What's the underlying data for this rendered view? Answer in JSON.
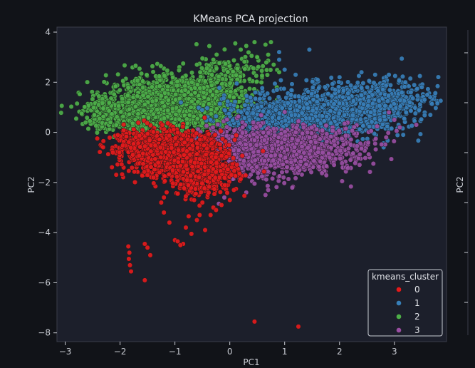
{
  "chart_data": {
    "type": "scatter",
    "title": "KMeans PCA projection",
    "xlabel": "PC1",
    "ylabel": "PC2",
    "right_ylabel": "PC2",
    "xlim": [
      -3.15,
      3.95
    ],
    "ylim": [
      -8.35,
      4.2
    ],
    "xticks": [
      "−3",
      "−2",
      "−1",
      "0",
      "1",
      "2",
      "3"
    ],
    "xtick_values": [
      -3,
      -2,
      -1,
      0,
      1,
      2,
      3
    ],
    "yticks": [
      "4",
      "2",
      "0",
      "−2",
      "−4",
      "−6",
      "−8"
    ],
    "ytick_values": [
      4,
      2,
      0,
      -2,
      -4,
      -6,
      -8
    ],
    "grid": false,
    "legend": {
      "title": "kmeans_cluster",
      "placement": "lower-right",
      "entries": [
        "0",
        "1",
        "2",
        "3"
      ]
    },
    "colors": {
      "background": "#111318",
      "plot_bg": "#1c1f2b",
      "text": "#d7d9de",
      "0": "#e41a1c",
      "1": "#377eb8",
      "2": "#4daf4a",
      "3": "#984ea3"
    },
    "series": [
      {
        "name": "0",
        "clusters": [
          {
            "cx": -1.0,
            "cy": -0.9,
            "sx": 0.45,
            "sy": 0.45,
            "n": 1100
          },
          {
            "cx": -0.45,
            "cy": -1.6,
            "sx": 0.3,
            "sy": 0.45,
            "n": 420
          },
          {
            "cx": -1.6,
            "cy": -0.4,
            "sx": 0.3,
            "sy": 0.3,
            "n": 220
          }
        ],
        "points": [
          [
            -1.85,
            -4.55
          ],
          [
            -1.83,
            -4.8
          ],
          [
            -1.84,
            -5.05
          ],
          [
            -1.82,
            -5.3
          ],
          [
            -1.8,
            -5.55
          ],
          [
            -1.55,
            -4.45
          ],
          [
            -1.5,
            -4.6
          ],
          [
            -1.45,
            -4.9
          ],
          [
            -1.55,
            -5.9
          ],
          [
            -1.0,
            -4.3
          ],
          [
            -0.95,
            -4.35
          ],
          [
            -0.85,
            -4.45
          ],
          [
            -0.9,
            -4.5
          ],
          [
            -1.2,
            -3.2
          ],
          [
            -1.1,
            -3.6
          ],
          [
            -0.8,
            -3.8
          ],
          [
            -0.7,
            -4.05
          ],
          [
            -0.45,
            -3.9
          ],
          [
            -0.6,
            -3.5
          ],
          [
            -0.75,
            -3.35
          ],
          [
            -0.35,
            -3.3
          ],
          [
            -0.3,
            -3.0
          ],
          [
            -0.25,
            -3.1
          ],
          [
            -0.95,
            -2.45
          ],
          [
            -0.8,
            -2.55
          ],
          [
            -0.65,
            -2.7
          ],
          [
            -1.2,
            -2.6
          ],
          [
            -1.25,
            -2.8
          ],
          [
            -0.5,
            -2.8
          ],
          [
            0.0,
            -2.7
          ],
          [
            0.45,
            -7.55
          ],
          [
            1.25,
            -7.75
          ],
          [
            -0.55,
            -3.3
          ],
          [
            -0.15,
            -2.9
          ]
        ]
      },
      {
        "name": "1",
        "clusters": [
          {
            "cx": 1.7,
            "cy": 0.8,
            "sx": 0.75,
            "sy": 0.5,
            "n": 1050
          },
          {
            "cx": 2.8,
            "cy": 1.3,
            "sx": 0.5,
            "sy": 0.45,
            "n": 280
          },
          {
            "cx": 0.8,
            "cy": 0.35,
            "sx": 0.5,
            "sy": 0.4,
            "n": 350
          }
        ],
        "points": [
          [
            1.45,
            3.3
          ],
          [
            0.9,
            3.2
          ],
          [
            2.65,
            2.3
          ],
          [
            3.2,
            2.0
          ],
          [
            3.5,
            1.8
          ],
          [
            3.55,
            1.3
          ],
          [
            3.6,
            1.5
          ],
          [
            3.3,
            1.6
          ],
          [
            1.2,
            2.3
          ],
          [
            1.0,
            2.5
          ],
          [
            2.4,
            2.4
          ],
          [
            2.0,
            2.2
          ],
          [
            1.6,
            2.1
          ],
          [
            0.9,
            2.9
          ],
          [
            2.9,
            2.3
          ]
        ]
      },
      {
        "name": "2",
        "clusters": [
          {
            "cx": -1.1,
            "cy": 1.1,
            "sx": 0.55,
            "sy": 0.55,
            "n": 1400
          },
          {
            "cx": -2.0,
            "cy": 0.7,
            "sx": 0.35,
            "sy": 0.3,
            "n": 320
          },
          {
            "cx": -0.3,
            "cy": 1.2,
            "sx": 0.35,
            "sy": 0.5,
            "n": 330
          },
          {
            "cx": 0.1,
            "cy": 2.4,
            "sx": 0.3,
            "sy": 0.35,
            "n": 130
          }
        ],
        "points": [
          [
            -2.8,
            0.55
          ],
          [
            -2.7,
            0.75
          ],
          [
            -2.55,
            0.45
          ],
          [
            0.3,
            3.45
          ],
          [
            0.65,
            3.5
          ],
          [
            0.75,
            3.6
          ],
          [
            0.5,
            3.0
          ],
          [
            0.8,
            2.7
          ],
          [
            0.9,
            2.4
          ],
          [
            -0.5,
            2.95
          ],
          [
            -0.3,
            2.9
          ],
          [
            -0.6,
            2.7
          ],
          [
            0.2,
            3.3
          ],
          [
            0.1,
            3.55
          ],
          [
            -0.85,
            2.75
          ],
          [
            0.45,
            3.6
          ],
          [
            0.7,
            3.1
          ]
        ]
      },
      {
        "name": "3",
        "clusters": [
          {
            "cx": 0.8,
            "cy": -0.8,
            "sx": 0.55,
            "sy": 0.45,
            "n": 1150
          },
          {
            "cx": 0.1,
            "cy": -0.6,
            "sx": 0.3,
            "sy": 0.45,
            "n": 300
          },
          {
            "cx": 1.8,
            "cy": -0.5,
            "sx": 0.5,
            "sy": 0.4,
            "n": 220
          }
        ],
        "points": [
          [
            3.4,
            0.3
          ],
          [
            3.1,
            0.2
          ],
          [
            2.85,
            -0.2
          ],
          [
            2.65,
            -0.45
          ],
          [
            2.9,
            0.8
          ],
          [
            2.4,
            -0.65
          ],
          [
            2.2,
            -1.1
          ],
          [
            1.9,
            -1.3
          ],
          [
            3.0,
            0.5
          ],
          [
            0.65,
            -2.5
          ],
          [
            0.3,
            -2.4
          ],
          [
            0.7,
            -2.3
          ],
          [
            -0.1,
            -2.6
          ],
          [
            -0.2,
            -2.85
          ],
          [
            0.45,
            -2.05
          ]
        ]
      }
    ]
  }
}
